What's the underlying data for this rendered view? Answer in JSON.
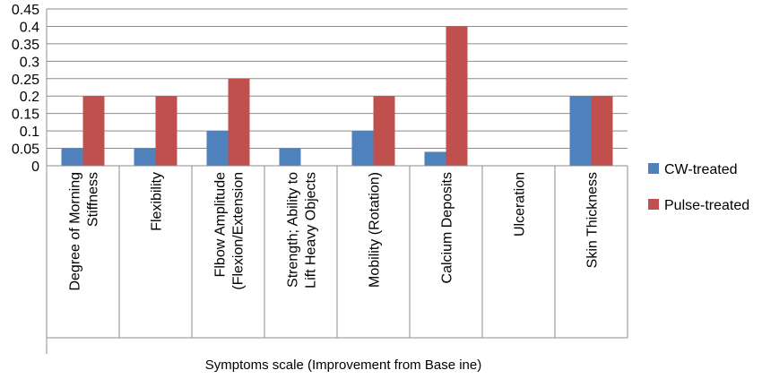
{
  "chart_data": {
    "type": "bar",
    "title": "",
    "xlabel": "Symptoms scale (Improvement from Base ine)",
    "ylabel": "",
    "ylim": [
      0,
      0.45
    ],
    "yticks": [
      "0",
      "0.05",
      "0.1",
      "0.15",
      "0.2",
      "0.25",
      "0.3",
      "0.35",
      "0.4",
      "0.45"
    ],
    "grid": true,
    "legend_position": "right",
    "categories": [
      [
        "Degree of Morning",
        "Stiffness"
      ],
      [
        "Flexibility"
      ],
      [
        "Flbow Amplitude",
        "(Flexion/Extension"
      ],
      [
        "Strength; Ability to",
        "Lift Heavy Objects"
      ],
      [
        "Mobility (Rotation)"
      ],
      [
        "Calcium Deposits"
      ],
      [
        "Ulceration"
      ],
      [
        "Skin Thickness"
      ]
    ],
    "series": [
      {
        "name": "CW-treated",
        "color": "#4f81bd",
        "values": [
          0.05,
          0.05,
          0.1,
          0.05,
          0.1,
          0.04,
          0,
          0.2
        ]
      },
      {
        "name": "Pulse-treated",
        "color": "#c0504d",
        "values": [
          0.2,
          0.2,
          0.25,
          0,
          0.2,
          0.4,
          0,
          0.2
        ]
      }
    ]
  }
}
